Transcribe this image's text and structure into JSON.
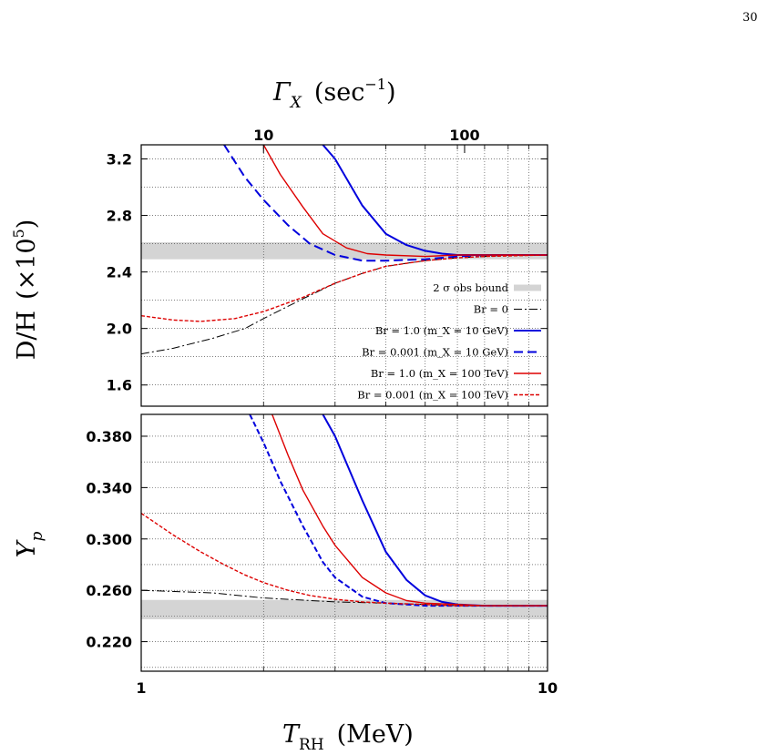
{
  "page": {
    "number": "30"
  },
  "chart_data": [
    {
      "type": "line",
      "panel": "upper",
      "top_axis": {
        "label_main": "Γ",
        "label_sub": "X",
        "label_unit_open": "(sec",
        "label_unit_exp": "−1",
        "label_unit_close": ")",
        "tick_labels": [
          "10",
          "100"
        ],
        "tick_values_T": [
          2.0,
          6.25
        ]
      },
      "ylabel_main": "D/H",
      "ylabel_factor": "(×10",
      "ylabel_exp": "5",
      "ylabel_close": ")",
      "xscale": "log",
      "xlim": [
        1,
        10
      ],
      "ylim": [
        1.45,
        3.3
      ],
      "yticks": [
        1.6,
        2.0,
        2.4,
        2.8,
        3.2
      ],
      "ytick_labels": [
        "1.6",
        "2.0",
        "2.4",
        "2.8",
        "3.2"
      ],
      "grid": true,
      "band": {
        "label": "2 σ obs bound",
        "y": [
          2.49,
          2.61
        ],
        "color": "#d4d4d4"
      },
      "legend_position": "lower-right",
      "series": [
        {
          "name": "Br = 0",
          "color": "#000000",
          "dash": "9,3,2,3",
          "width": 1,
          "x": [
            1.0,
            1.2,
            1.5,
            1.8,
            2.0,
            2.5,
            3.0,
            3.5,
            4.0,
            5.0,
            6.0,
            7.0,
            8.0,
            10.0
          ],
          "y": [
            1.82,
            1.86,
            1.93,
            2.0,
            2.07,
            2.21,
            2.32,
            2.39,
            2.44,
            2.48,
            2.5,
            2.51,
            2.52,
            2.52
          ]
        },
        {
          "name": "Br = 1.0 (m_X = 10 GeV)",
          "color": "#0000dd",
          "dash": "",
          "width": 2,
          "x": [
            2.8,
            3.0,
            3.5,
            4.0,
            4.5,
            5.0,
            5.5,
            6.0,
            7.0,
            8.0,
            10.0
          ],
          "y": [
            3.3,
            3.2,
            2.87,
            2.67,
            2.59,
            2.55,
            2.53,
            2.52,
            2.52,
            2.52,
            2.52
          ]
        },
        {
          "name": "Br = 0.001 (m_X = 10 GeV)",
          "color": "#0000dd",
          "dash": "10,5",
          "width": 2,
          "x": [
            1.6,
            1.8,
            2.0,
            2.3,
            2.6,
            3.0,
            3.5,
            4.0,
            5.0,
            6.0,
            7.0,
            8.0,
            10.0
          ],
          "y": [
            3.3,
            3.07,
            2.91,
            2.73,
            2.6,
            2.52,
            2.48,
            2.48,
            2.49,
            2.51,
            2.52,
            2.52,
            2.52
          ]
        },
        {
          "name": "Br = 1.0 (m_X = 100 TeV)",
          "color": "#dd0000",
          "dash": "",
          "width": 1.4,
          "x": [
            2.0,
            2.2,
            2.5,
            2.8,
            3.2,
            3.6,
            4.0,
            5.0,
            6.0,
            7.0,
            10.0
          ],
          "y": [
            3.3,
            3.09,
            2.86,
            2.67,
            2.57,
            2.53,
            2.52,
            2.51,
            2.52,
            2.52,
            2.52
          ]
        },
        {
          "name": "Br = 0.001 (m_X = 100 TeV)",
          "color": "#dd0000",
          "dash": "4,2",
          "width": 1.4,
          "x": [
            1.0,
            1.2,
            1.4,
            1.7,
            2.0,
            2.5,
            3.0,
            3.5,
            4.0,
            5.0,
            6.0,
            7.0,
            10.0
          ],
          "y": [
            2.09,
            2.06,
            2.05,
            2.07,
            2.12,
            2.22,
            2.32,
            2.39,
            2.44,
            2.48,
            2.5,
            2.51,
            2.52
          ]
        }
      ]
    },
    {
      "type": "line",
      "panel": "lower",
      "ylabel_main": "Y",
      "ylabel_sub": "p",
      "xlabel_main": "T",
      "xlabel_sub": "RH",
      "xlabel_unit": "(MeV)",
      "xscale": "log",
      "xlim": [
        1,
        10
      ],
      "xtick_labels": [
        "1",
        "10"
      ],
      "ylim": [
        0.197,
        0.397
      ],
      "yticks": [
        0.22,
        0.26,
        0.3,
        0.34,
        0.38
      ],
      "ytick_labels": [
        "0.220",
        "0.260",
        "0.300",
        "0.340",
        "0.380"
      ],
      "grid": true,
      "band": {
        "y": [
          0.2375,
          0.2525
        ],
        "color": "#d4d4d4"
      },
      "series": [
        {
          "name": "Br = 0",
          "color": "#000000",
          "dash": "9,3,2,3",
          "width": 1,
          "x": [
            1.0,
            1.5,
            2.0,
            3.0,
            4.0,
            5.0,
            6.0,
            8.0,
            10.0
          ],
          "y": [
            0.26,
            0.258,
            0.254,
            0.251,
            0.25,
            0.249,
            0.248,
            0.248,
            0.248
          ]
        },
        {
          "name": "Br = 1.0 (m_X = 10 GeV)",
          "color": "#0000dd",
          "dash": "",
          "width": 2,
          "x": [
            2.8,
            3.0,
            3.5,
            4.0,
            4.5,
            5.0,
            5.5,
            6.0,
            7.0,
            8.0,
            10.0
          ],
          "y": [
            0.397,
            0.38,
            0.33,
            0.29,
            0.268,
            0.256,
            0.251,
            0.249,
            0.248,
            0.248,
            0.248
          ]
        },
        {
          "name": "Br = 0.001 (m_X = 10 GeV)",
          "color": "#0000dd",
          "dash": "6,3",
          "width": 2,
          "x": [
            1.85,
            2.0,
            2.2,
            2.5,
            2.8,
            3.0,
            3.5,
            4.0,
            4.5,
            5.0,
            6.0,
            7.0,
            10.0
          ],
          "y": [
            0.397,
            0.375,
            0.345,
            0.31,
            0.282,
            0.27,
            0.255,
            0.25,
            0.249,
            0.248,
            0.248,
            0.248,
            0.248
          ]
        },
        {
          "name": "Br = 1.0 (m_X = 100 TeV)",
          "color": "#dd0000",
          "dash": "",
          "width": 1.4,
          "x": [
            2.1,
            2.3,
            2.5,
            2.8,
            3.0,
            3.5,
            4.0,
            4.5,
            5.0,
            6.0,
            7.0,
            10.0
          ],
          "y": [
            0.397,
            0.365,
            0.338,
            0.31,
            0.295,
            0.27,
            0.258,
            0.252,
            0.25,
            0.249,
            0.248,
            0.248
          ]
        },
        {
          "name": "Br = 0.001 (m_X = 100 TeV)",
          "color": "#dd0000",
          "dash": "4,2",
          "width": 1.4,
          "x": [
            1.0,
            1.2,
            1.4,
            1.6,
            1.8,
            2.0,
            2.3,
            2.6,
            3.0,
            3.5,
            4.0,
            5.0,
            6.0,
            10.0
          ],
          "y": [
            0.32,
            0.303,
            0.29,
            0.28,
            0.272,
            0.266,
            0.26,
            0.256,
            0.253,
            0.251,
            0.25,
            0.249,
            0.248,
            0.248
          ]
        }
      ]
    }
  ]
}
